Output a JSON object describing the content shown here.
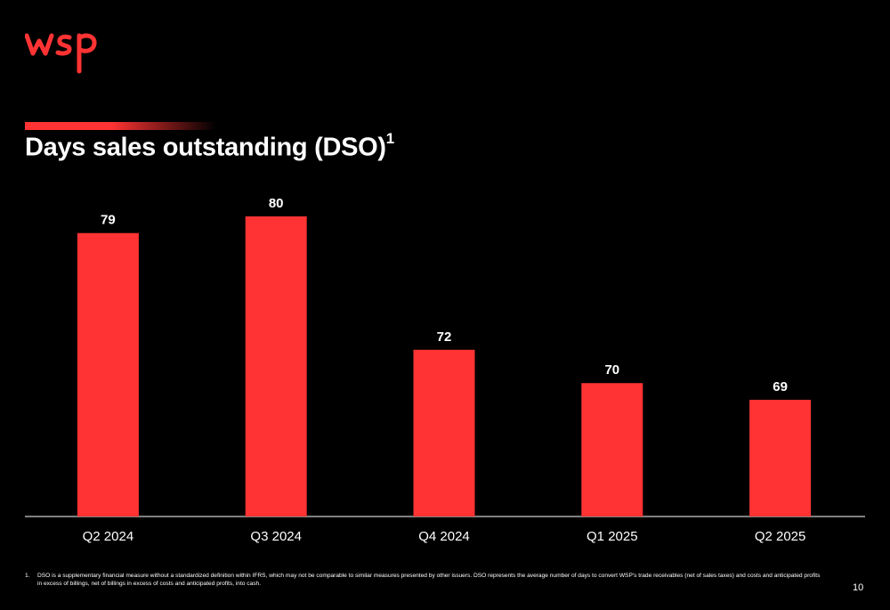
{
  "brand": {
    "logo_text": "wsp",
    "accent_color": "#ff3333"
  },
  "slide": {
    "title": "Days sales outstanding (DSO)",
    "title_superscript": "1",
    "page_number": "10"
  },
  "footnote": {
    "number": "1.",
    "text": "DSO is a supplementary financial measure without a standardized definition within IFRS, which may not be comparable to similar measures presented by other issuers. DSO represents the average number of days to convert WSP's trade receivables (net of sales taxes) and costs and anticipated profits in excess of billings, net of billings in excess of costs and anticipated profits, into cash."
  },
  "chart_data": {
    "type": "bar",
    "categories": [
      "Q2 2024",
      "Q3 2024",
      "Q4 2024",
      "Q1 2025",
      "Q2 2025"
    ],
    "values": [
      79,
      80,
      72,
      70,
      69
    ],
    "title": "",
    "xlabel": "",
    "ylabel": "",
    "ylim": [
      62,
      81
    ],
    "grid": false,
    "data_labels": true,
    "bar_color": "#ff3333"
  }
}
